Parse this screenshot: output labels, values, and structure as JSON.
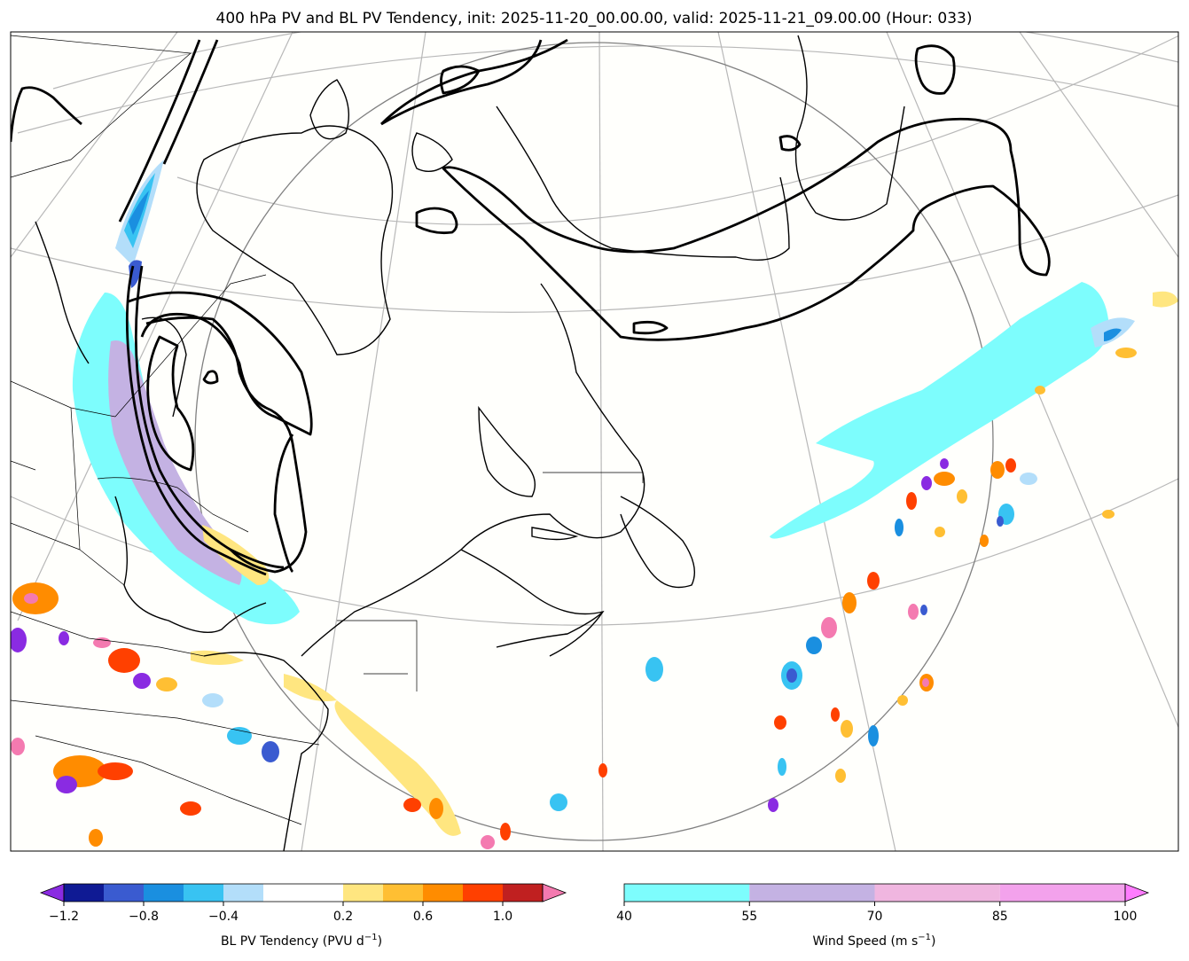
{
  "chart_data": {
    "type": "map",
    "title": "400 hPa PV and BL PV Tendency, init: 2025-11-20_00.00.00, valid: 2025-11-21_09.00.00 (Hour: 033)",
    "pv_tendency_colorbar": {
      "label": "BL PV Tendency (PVU d",
      "label_exp": "−1",
      "label_close": ")",
      "levels": [
        -1.2,
        -1.0,
        -0.8,
        -0.6,
        -0.4,
        -0.2,
        0.2,
        0.4,
        0.6,
        0.8,
        1.0,
        1.2
      ],
      "colors": [
        "#0f1a94",
        "#3a5bd0",
        "#1a8fe0",
        "#38c3f2",
        "#b3defa",
        "#ffffff",
        "#ffe680",
        "#ffbf33",
        "#ff8c00",
        "#ff4000",
        "#c02020"
      ],
      "under_color": "#8a2be2",
      "over_color": "#f47ab0",
      "tick_labels": [
        "−1.2",
        "−0.8",
        "−0.4",
        "0.2",
        "0.6",
        "1.0"
      ]
    },
    "wind_colorbar": {
      "label": "Wind Speed (m s",
      "label_exp": "−1",
      "label_close": ")",
      "levels": [
        40,
        55,
        70,
        85,
        100
      ],
      "colors": [
        "#7dfdfd",
        "#c4b2e3",
        "#f0b6e0",
        "#f3a2ec"
      ],
      "over_color": "#ff7cff",
      "tick_labels": [
        "40",
        "55",
        "70",
        "85",
        "100"
      ]
    },
    "layers": {
      "pv_contour_color": "#000000",
      "coastline_color": "#000000",
      "graticule_color": "#b0b0b0"
    }
  }
}
